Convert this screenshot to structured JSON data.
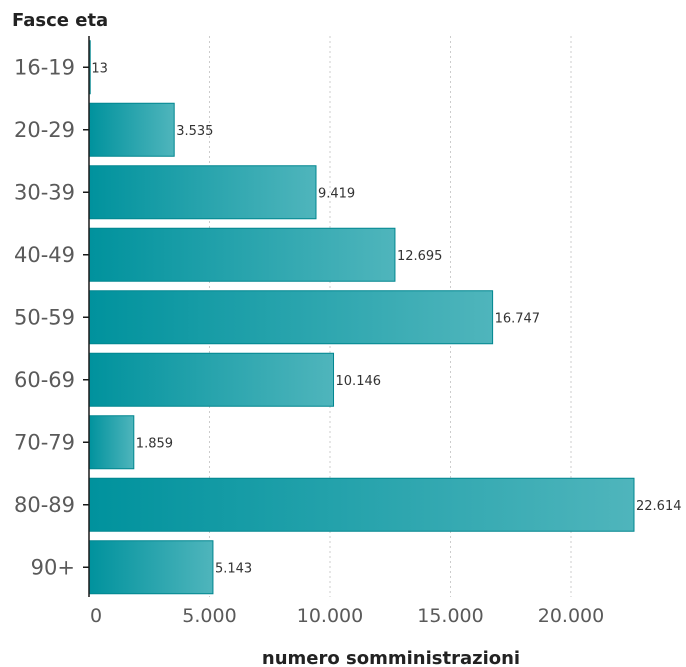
{
  "chart_data": {
    "type": "bar",
    "orientation": "horizontal",
    "ylabel": "Fasce eta",
    "xlabel": "numero somministrazioni",
    "categories": [
      "16-19",
      "20-29",
      "30-39",
      "40-49",
      "50-59",
      "60-69",
      "70-79",
      "80-89",
      "90+"
    ],
    "values": [
      13,
      3535,
      9419,
      12695,
      16747,
      10146,
      1859,
      22614,
      5143
    ],
    "value_labels": [
      "13",
      "3.535",
      "9.419",
      "12.695",
      "16.747",
      "10.146",
      "1.859",
      "22.614",
      "5.143"
    ],
    "xlim": [
      0,
      25000
    ],
    "x_ticks": [
      0,
      5000,
      10000,
      15000,
      20000
    ],
    "x_tick_labels": [
      "0",
      "5.000",
      "10.000",
      "15.000",
      "20.000"
    ],
    "grid": "vertical dotted",
    "colors": {
      "bar_start": "#00929d",
      "bar_end": "#4fb5bc",
      "bar_stroke": "#00868f",
      "axis": "#1a1a1a",
      "grid": "#cccccc"
    }
  }
}
